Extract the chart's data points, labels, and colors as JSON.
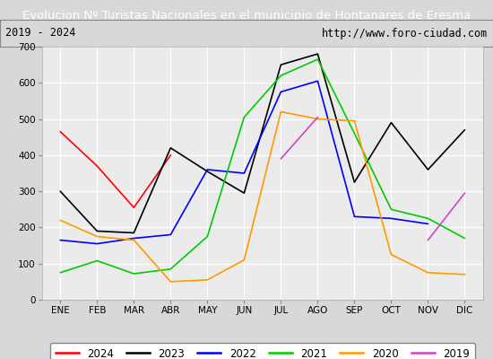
{
  "title": "Evolucion Nº Turistas Nacionales en el municipio de Hontanares de Eresma",
  "subtitle_left": "2019 - 2024",
  "subtitle_right": "http://www.foro-ciudad.com",
  "months": [
    "ENE",
    "FEB",
    "MAR",
    "ABR",
    "MAY",
    "JUN",
    "JUL",
    "AGO",
    "SEP",
    "OCT",
    "NOV",
    "DIC"
  ],
  "series": {
    "2024": {
      "data": [
        465,
        370,
        255,
        400,
        null,
        null,
        null,
        null,
        null,
        null,
        null,
        null
      ],
      "color": "#ff0000",
      "linewidth": 1.2
    },
    "2023": {
      "data": [
        300,
        190,
        185,
        420,
        355,
        295,
        650,
        680,
        325,
        490,
        360,
        470
      ],
      "color": "#000000",
      "linewidth": 1.2
    },
    "2022": {
      "data": [
        165,
        155,
        170,
        180,
        360,
        350,
        575,
        605,
        230,
        225,
        210,
        null
      ],
      "color": "#0000ff",
      "linewidth": 1.2
    },
    "2021": {
      "data": [
        75,
        108,
        72,
        85,
        175,
        505,
        620,
        665,
        460,
        250,
        225,
        170
      ],
      "color": "#00cc00",
      "linewidth": 1.2
    },
    "2020": {
      "data": [
        220,
        175,
        165,
        50,
        55,
        110,
        520,
        500,
        495,
        125,
        75,
        70
      ],
      "color": "#ff9900",
      "linewidth": 1.2
    },
    "2019": {
      "data": [
        null,
        null,
        null,
        null,
        null,
        null,
        390,
        505,
        null,
        null,
        165,
        295
      ],
      "color": "#cc44cc",
      "linewidth": 1.2
    }
  },
  "ylim": [
    0,
    700
  ],
  "yticks": [
    0,
    100,
    200,
    300,
    400,
    500,
    600,
    700
  ],
  "bg_color": "#d8d8d8",
  "plot_bg_color": "#ebebeb",
  "title_bg_color": "#3a7abf",
  "title_text_color": "#ffffff",
  "subtitle_bg_color": "#d8d8d8",
  "grid_color": "#ffffff",
  "legend_order": [
    "2024",
    "2023",
    "2022",
    "2021",
    "2020",
    "2019"
  ]
}
